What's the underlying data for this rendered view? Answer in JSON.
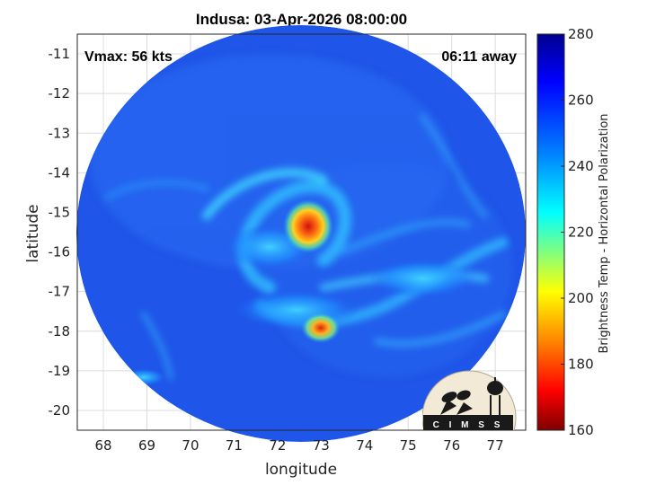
{
  "title": "Indusa: 03-Apr-2026 08:00:00",
  "vmax_label": "Vmax: 56 kts",
  "time_away_label": "06:11 away",
  "xlabel": "longitude",
  "ylabel": "latitude",
  "colorbar_label": "Brightness Temp - Horizontal Polarization",
  "logo_text": "CIMSS",
  "x_ticks": [
    "68",
    "69",
    "70",
    "71",
    "72",
    "73",
    "74",
    "75",
    "76",
    "77"
  ],
  "y_ticks": [
    "-11",
    "-12",
    "-13",
    "-14",
    "-15",
    "-16",
    "-17",
    "-18",
    "-19",
    "-20"
  ],
  "colorbar_ticks": [
    "280",
    "260",
    "240",
    "220",
    "200",
    "180",
    "160"
  ],
  "colors": {
    "background_blue": "#1a4fe0",
    "cold_core": "#e03010",
    "colormap": [
      "#7f0000",
      "#ff0000",
      "#ff8000",
      "#ffff00",
      "#80ff80",
      "#00ffff",
      "#0080ff",
      "#0000ff",
      "#00008f"
    ]
  },
  "chart_data": {
    "type": "heatmap",
    "title": "Indusa: 03-Apr-2026 08:00:00",
    "xlabel": "longitude",
    "ylabel": "latitude",
    "xlim": [
      67.4,
      77.7
    ],
    "ylim": [
      -20.5,
      -10.5
    ],
    "clim": [
      160,
      280
    ],
    "colorbar_label": "Brightness Temp - Horizontal Polarization",
    "grid": true,
    "features": [
      {
        "name": "eyewall cold core",
        "lon": 72.7,
        "lat": -15.4,
        "tb": 190
      },
      {
        "name": "secondary cold spot",
        "lon": 73.0,
        "lat": -17.9,
        "tb": 195
      }
    ]
  }
}
